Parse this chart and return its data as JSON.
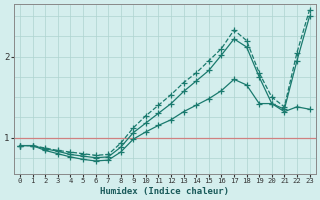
{
  "xlabel": "Humidex (Indice chaleur)",
  "bg_color": "#d4eeed",
  "line_color": "#1a7a6e",
  "grid_color": "#aed4d0",
  "hline_color": "#d08080",
  "xlim": [
    -0.5,
    23.5
  ],
  "ylim": [
    0.55,
    2.65
  ],
  "yticks": [
    1,
    2
  ],
  "xticks": [
    0,
    1,
    2,
    3,
    4,
    5,
    6,
    7,
    8,
    9,
    10,
    11,
    12,
    13,
    14,
    15,
    16,
    17,
    18,
    19,
    20,
    21,
    22,
    23
  ],
  "series": [
    [
      0.9,
      0.9,
      0.86,
      0.83,
      0.79,
      0.77,
      0.75,
      0.76,
      0.88,
      1.06,
      1.18,
      1.3,
      1.42,
      1.57,
      1.7,
      1.83,
      2.02,
      2.22,
      2.12,
      1.75,
      1.42,
      1.35,
      1.95,
      2.5
    ],
    [
      0.9,
      0.9,
      0.87,
      0.84,
      0.82,
      0.8,
      0.78,
      0.79,
      0.93,
      1.12,
      1.27,
      1.4,
      1.53,
      1.68,
      1.8,
      1.95,
      2.1,
      2.33,
      2.2,
      1.8,
      1.5,
      1.38,
      2.05,
      2.58
    ],
    [
      0.9,
      0.9,
      0.84,
      0.8,
      0.76,
      0.73,
      0.71,
      0.72,
      0.82,
      0.98,
      1.07,
      1.15,
      1.22,
      1.32,
      1.4,
      1.48,
      1.58,
      1.72,
      1.65,
      1.42,
      1.42,
      1.32,
      1.38,
      1.35
    ]
  ],
  "series_styles": [
    {
      "linestyle": "-",
      "marker": "+",
      "markersize": 4,
      "linewidth": 0.9
    },
    {
      "linestyle": "--",
      "marker": "+",
      "markersize": 4,
      "linewidth": 0.9
    },
    {
      "linestyle": "-",
      "marker": "+",
      "markersize": 4,
      "linewidth": 0.9
    }
  ]
}
